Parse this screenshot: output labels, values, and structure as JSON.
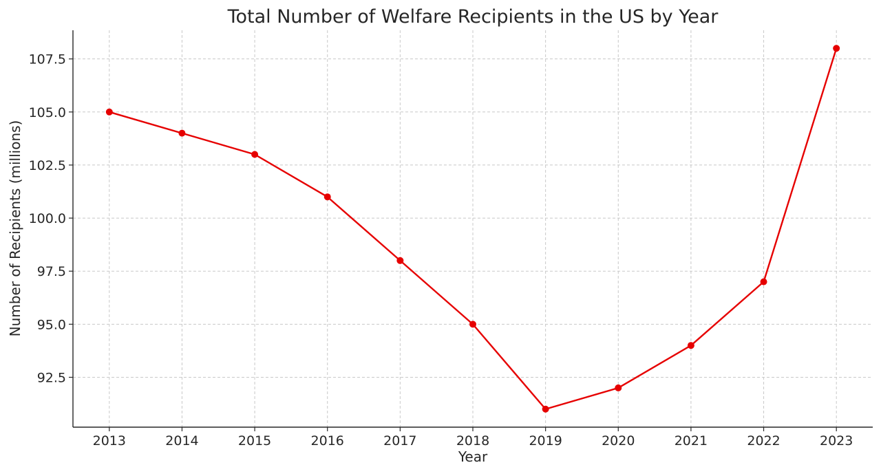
{
  "chart_data": {
    "type": "line",
    "title": "Total Number of Welfare Recipients in the US by Year",
    "xlabel": "Year",
    "ylabel": "Number of Recipients (millions)",
    "x": [
      2013,
      2014,
      2015,
      2016,
      2017,
      2018,
      2019,
      2020,
      2021,
      2022,
      2023
    ],
    "x_tick_labels": [
      "2013",
      "2014",
      "2015",
      "2016",
      "2017",
      "2018",
      "2019",
      "2020",
      "2021",
      "2022",
      "2023"
    ],
    "series": [
      {
        "values": [
          105,
          104,
          103,
          101,
          98,
          95,
          91,
          92,
          94,
          97,
          108
        ],
        "color": "#e60000",
        "marker": "circle"
      }
    ],
    "y_ticks": [
      92.5,
      95.0,
      97.5,
      100.0,
      102.5,
      105.0,
      107.5
    ],
    "y_tick_labels": [
      "92.5",
      "95.0",
      "97.5",
      "100.0",
      "102.5",
      "105.0",
      "107.5"
    ],
    "xlim": [
      2012.5,
      2023.5
    ],
    "ylim": [
      90.15,
      108.85
    ],
    "grid": true,
    "legend": "none"
  }
}
